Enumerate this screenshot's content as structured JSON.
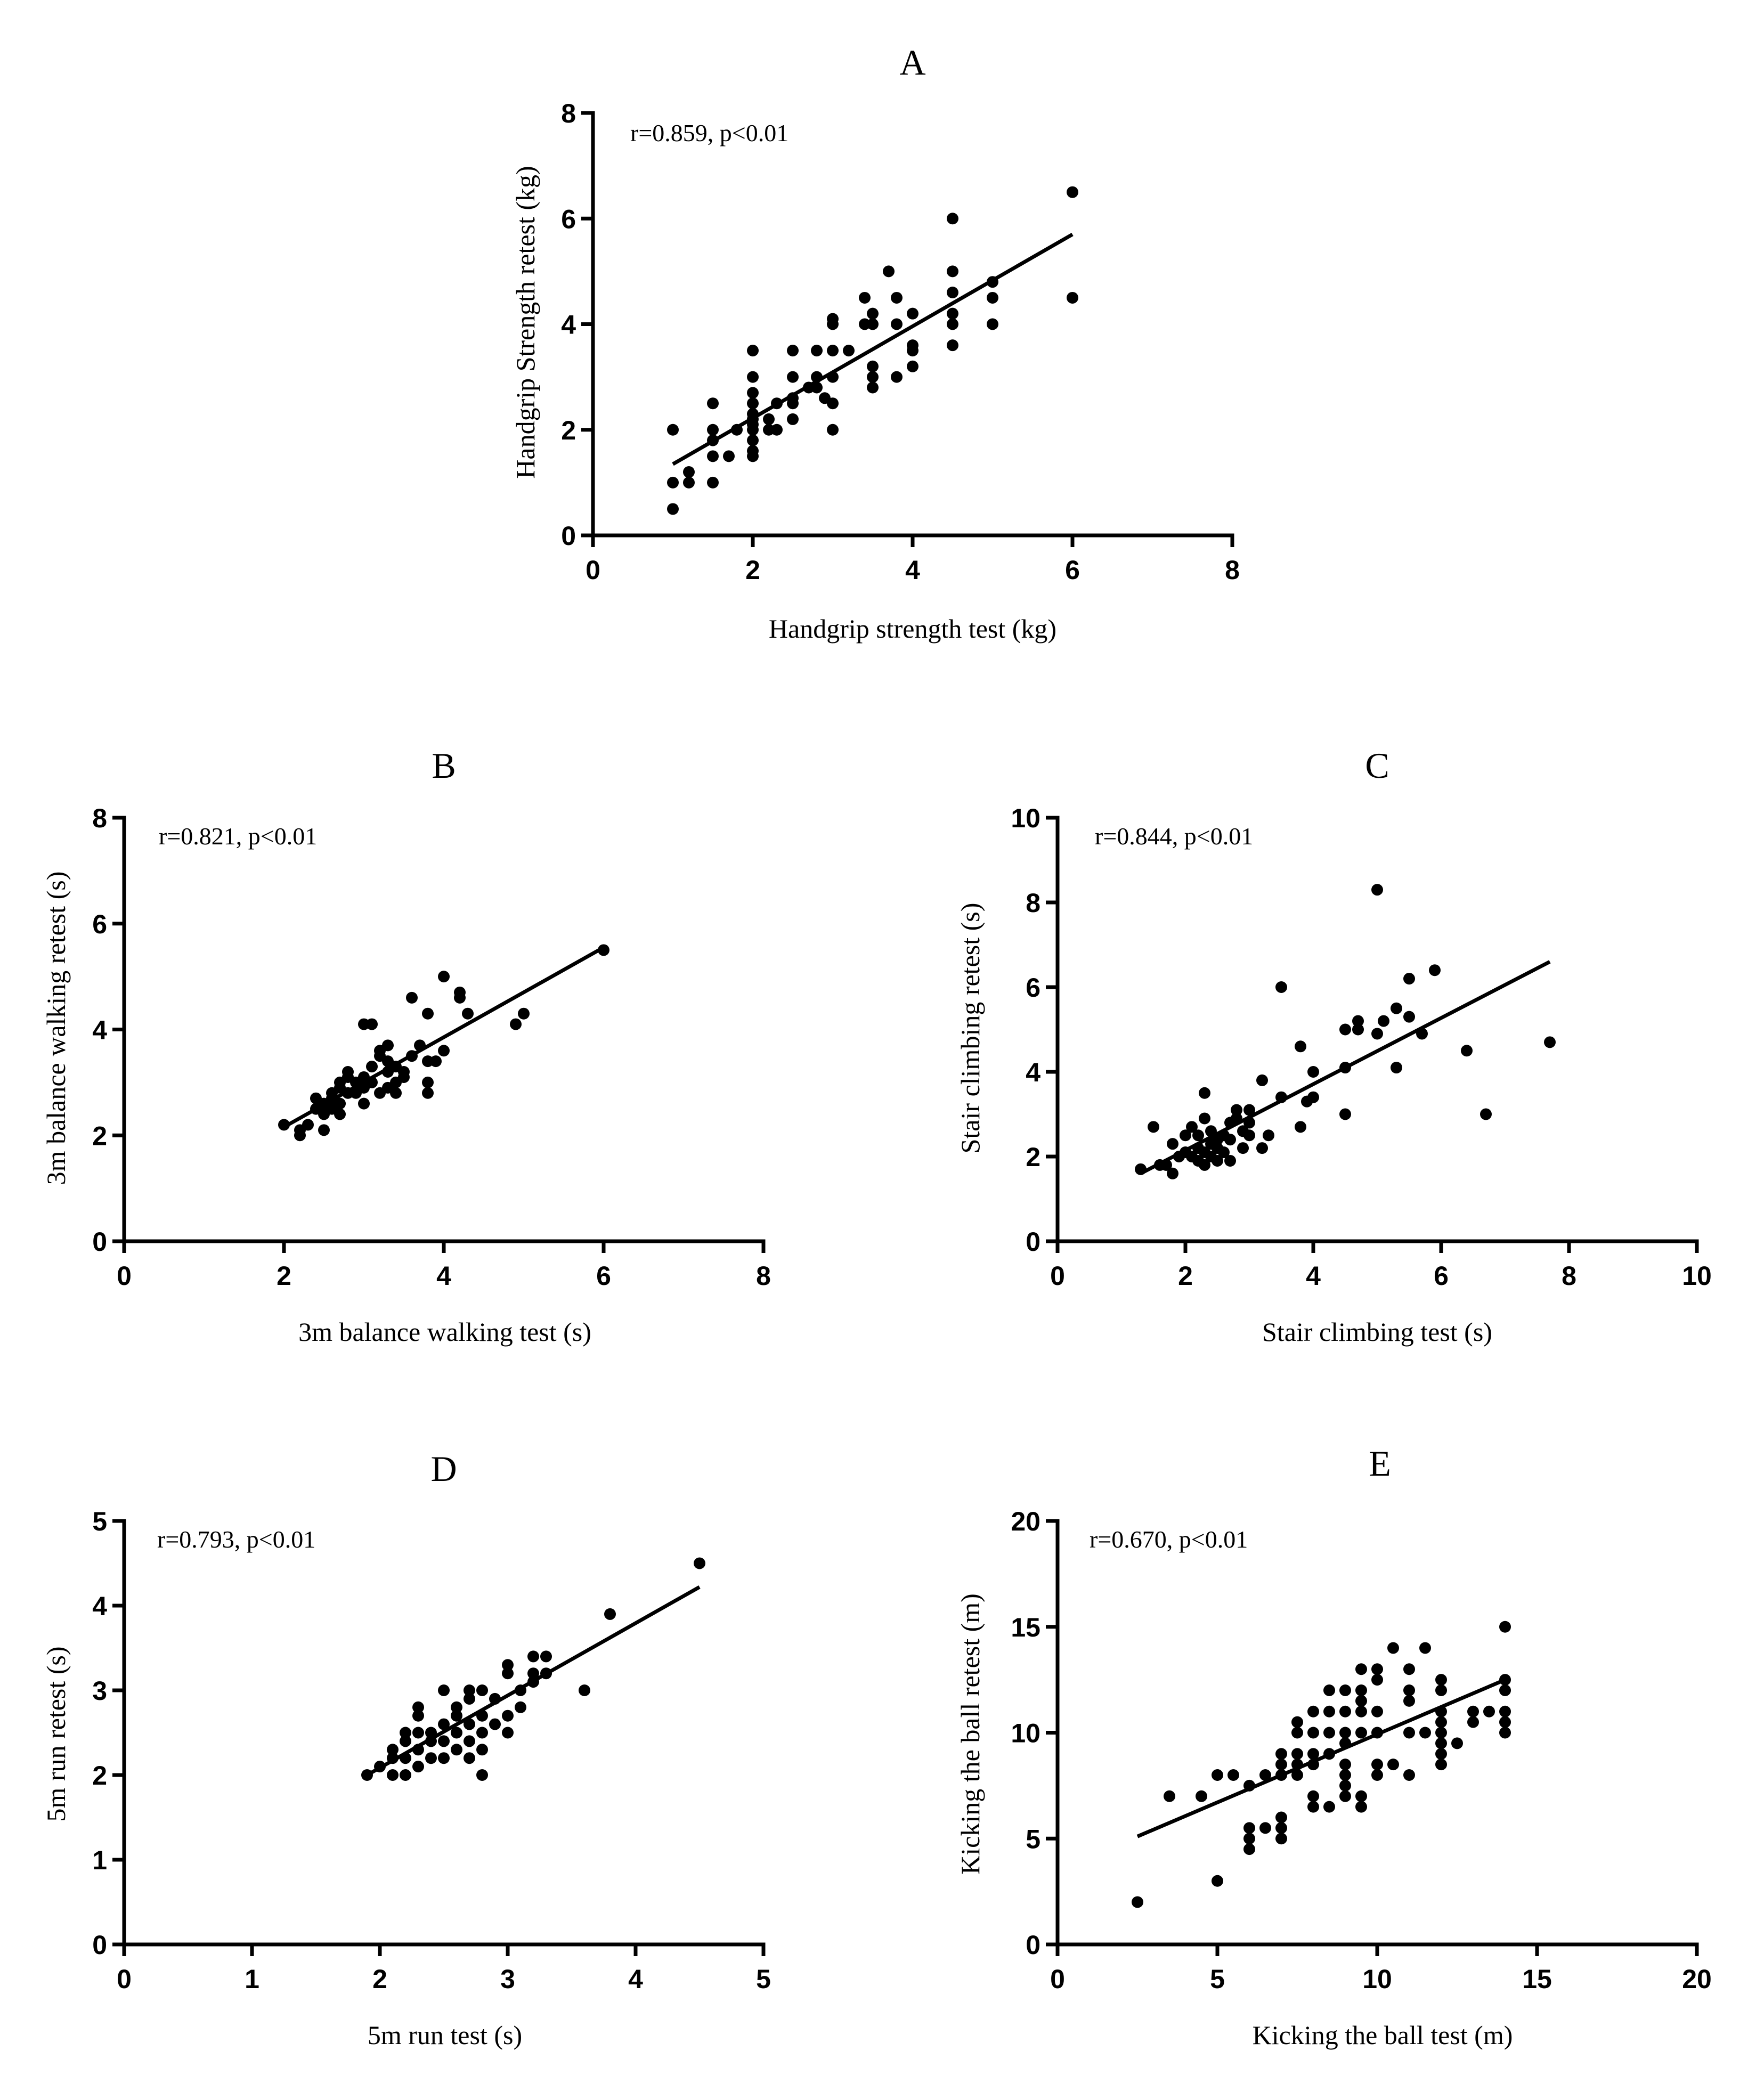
{
  "chart_data": [
    {
      "panel": "A",
      "type": "scatter",
      "xlabel": "Handgrip strength test (kg)",
      "ylabel": "Handgrip Strength retest (kg)",
      "annotation": "r=0.859, p<0.01",
      "xlim": [
        0,
        8
      ],
      "ylim": [
        0,
        8
      ],
      "xticks": [
        0,
        2,
        4,
        6,
        8
      ],
      "yticks": [
        0,
        2,
        4,
        6,
        8
      ],
      "fit": [
        [
          1,
          1.35
        ],
        [
          6,
          5.7
        ]
      ],
      "points": [
        [
          1,
          0.5
        ],
        [
          1,
          1
        ],
        [
          1,
          2
        ],
        [
          1.2,
          1
        ],
        [
          1.2,
          1.2
        ],
        [
          1.5,
          1
        ],
        [
          1.5,
          1.5
        ],
        [
          1.5,
          1.8
        ],
        [
          1.5,
          2
        ],
        [
          1.5,
          2.5
        ],
        [
          1.7,
          1.5
        ],
        [
          1.8,
          2
        ],
        [
          2,
          1.5
        ],
        [
          2,
          1.6
        ],
        [
          2,
          1.8
        ],
        [
          2,
          2
        ],
        [
          2,
          2.1
        ],
        [
          2,
          2.2
        ],
        [
          2,
          2.3
        ],
        [
          2,
          2.5
        ],
        [
          2,
          2.7
        ],
        [
          2,
          3
        ],
        [
          2,
          3.5
        ],
        [
          2.2,
          2
        ],
        [
          2.2,
          2.2
        ],
        [
          2.3,
          2.5
        ],
        [
          2.3,
          2
        ],
        [
          2.5,
          2.2
        ],
        [
          2.5,
          2.5
        ],
        [
          2.5,
          2.6
        ],
        [
          2.5,
          3
        ],
        [
          2.5,
          3.5
        ],
        [
          2.7,
          2.8
        ],
        [
          2.8,
          2.8
        ],
        [
          2.8,
          3
        ],
        [
          2.8,
          3.5
        ],
        [
          2.9,
          2.6
        ],
        [
          3,
          2
        ],
        [
          3,
          2.5
        ],
        [
          3,
          3
        ],
        [
          3,
          3.5
        ],
        [
          3,
          4
        ],
        [
          3,
          4.1
        ],
        [
          3.2,
          3.5
        ],
        [
          3.4,
          4
        ],
        [
          3.4,
          4.5
        ],
        [
          3.5,
          2.8
        ],
        [
          3.5,
          3
        ],
        [
          3.5,
          3.2
        ],
        [
          3.5,
          4
        ],
        [
          3.5,
          4.2
        ],
        [
          3.7,
          5
        ],
        [
          3.8,
          3
        ],
        [
          3.8,
          4
        ],
        [
          3.8,
          4.5
        ],
        [
          4,
          3.2
        ],
        [
          4,
          3.5
        ],
        [
          4,
          3.6
        ],
        [
          4,
          4.2
        ],
        [
          4.5,
          3.6
        ],
        [
          4.5,
          4
        ],
        [
          4.5,
          4.2
        ],
        [
          4.5,
          4.6
        ],
        [
          4.5,
          5
        ],
        [
          4.5,
          6
        ],
        [
          5,
          4
        ],
        [
          5,
          4.5
        ],
        [
          5,
          4.8
        ],
        [
          6,
          4.5
        ],
        [
          6,
          6.5
        ]
      ]
    },
    {
      "panel": "B",
      "type": "scatter",
      "xlabel": "3m balance walking test (s)",
      "ylabel": "3m balance walking retest (s)",
      "annotation": "r=0.821, p<0.01",
      "xlim": [
        0,
        8
      ],
      "ylim": [
        0,
        8
      ],
      "xticks": [
        0,
        2,
        4,
        6,
        8
      ],
      "yticks": [
        0,
        2,
        4,
        6,
        8
      ],
      "fit": [
        [
          2.05,
          2.2
        ],
        [
          6,
          5.55
        ]
      ],
      "points": [
        [
          2,
          2.2
        ],
        [
          2.2,
          2
        ],
        [
          2.2,
          2.1
        ],
        [
          2.3,
          2.2
        ],
        [
          2.4,
          2.5
        ],
        [
          2.4,
          2.7
        ],
        [
          2.5,
          2.1
        ],
        [
          2.5,
          2.4
        ],
        [
          2.5,
          2.6
        ],
        [
          2.6,
          2.5
        ],
        [
          2.6,
          2.7
        ],
        [
          2.6,
          2.8
        ],
        [
          2.7,
          2.4
        ],
        [
          2.7,
          2.6
        ],
        [
          2.7,
          2.9
        ],
        [
          2.7,
          3
        ],
        [
          2.8,
          2.8
        ],
        [
          2.8,
          3.1
        ],
        [
          2.8,
          3.2
        ],
        [
          2.9,
          2.8
        ],
        [
          2.9,
          3
        ],
        [
          3,
          2.6
        ],
        [
          3,
          2.9
        ],
        [
          3,
          3.1
        ],
        [
          3,
          4.1
        ],
        [
          3.1,
          3
        ],
        [
          3.1,
          3.3
        ],
        [
          3.1,
          4.1
        ],
        [
          3.2,
          2.8
        ],
        [
          3.2,
          3.5
        ],
        [
          3.2,
          3.6
        ],
        [
          3.3,
          2.9
        ],
        [
          3.3,
          3.2
        ],
        [
          3.3,
          3.4
        ],
        [
          3.3,
          3.7
        ],
        [
          3.4,
          2.8
        ],
        [
          3.4,
          3
        ],
        [
          3.4,
          3.3
        ],
        [
          3.5,
          3.2
        ],
        [
          3.5,
          3.1
        ],
        [
          3.6,
          3.5
        ],
        [
          3.6,
          4.6
        ],
        [
          3.7,
          3.7
        ],
        [
          3.8,
          2.8
        ],
        [
          3.8,
          3
        ],
        [
          3.8,
          3.4
        ],
        [
          3.8,
          4.3
        ],
        [
          3.9,
          3.4
        ],
        [
          4,
          3.6
        ],
        [
          4,
          5
        ],
        [
          4.2,
          4.6
        ],
        [
          4.2,
          4.7
        ],
        [
          4.3,
          4.3
        ],
        [
          4.9,
          4.1
        ],
        [
          5,
          4.3
        ],
        [
          6,
          5.5
        ]
      ]
    },
    {
      "panel": "C",
      "type": "scatter",
      "xlabel": "Stair climbing test (s)",
      "ylabel": "Stair climbing retest (s)",
      "annotation": "r=0.844, p<0.01",
      "xlim": [
        0,
        10
      ],
      "ylim": [
        0,
        10
      ],
      "xticks": [
        0,
        2,
        4,
        6,
        8,
        10
      ],
      "yticks": [
        0,
        2,
        4,
        6,
        8,
        10
      ],
      "fit": [
        [
          1.3,
          1.6
        ],
        [
          7.7,
          6.6
        ]
      ],
      "points": [
        [
          1.3,
          1.7
        ],
        [
          1.5,
          2.7
        ],
        [
          1.6,
          1.8
        ],
        [
          1.7,
          1.8
        ],
        [
          1.8,
          1.6
        ],
        [
          1.8,
          2.3
        ],
        [
          1.9,
          2
        ],
        [
          2,
          2.1
        ],
        [
          2,
          2.5
        ],
        [
          2.1,
          2
        ],
        [
          2.1,
          2.7
        ],
        [
          2.2,
          1.9
        ],
        [
          2.2,
          2.2
        ],
        [
          2.2,
          2.5
        ],
        [
          2.3,
          2.9
        ],
        [
          2.3,
          1.8
        ],
        [
          2.3,
          2.1
        ],
        [
          2.3,
          3.5
        ],
        [
          2.4,
          2
        ],
        [
          2.4,
          2.3
        ],
        [
          2.4,
          2.6
        ],
        [
          2.5,
          1.9
        ],
        [
          2.5,
          2.2
        ],
        [
          2.5,
          2.4
        ],
        [
          2.6,
          2.5
        ],
        [
          2.6,
          2.1
        ],
        [
          2.7,
          2.8
        ],
        [
          2.7,
          1.9
        ],
        [
          2.7,
          2.4
        ],
        [
          2.8,
          2.9
        ],
        [
          2.8,
          3.1
        ],
        [
          2.9,
          2.6
        ],
        [
          2.9,
          2.2
        ],
        [
          3,
          2.5
        ],
        [
          3,
          2.8
        ],
        [
          3,
          3.1
        ],
        [
          3.2,
          2.2
        ],
        [
          3.2,
          3.8
        ],
        [
          3.3,
          2.5
        ],
        [
          3.5,
          3.4
        ],
        [
          3.5,
          6
        ],
        [
          3.8,
          2.7
        ],
        [
          3.8,
          4.6
        ],
        [
          3.9,
          3.3
        ],
        [
          4,
          4
        ],
        [
          4,
          3.4
        ],
        [
          4.5,
          3
        ],
        [
          4.5,
          4.1
        ],
        [
          4.5,
          5
        ],
        [
          4.7,
          5
        ],
        [
          4.7,
          5.2
        ],
        [
          5,
          4.9
        ],
        [
          5,
          8.3
        ],
        [
          5.1,
          5.2
        ],
        [
          5.3,
          4.1
        ],
        [
          5.3,
          5.5
        ],
        [
          5.5,
          6.2
        ],
        [
          5.5,
          5.3
        ],
        [
          5.7,
          4.9
        ],
        [
          5.9,
          6.4
        ],
        [
          6.4,
          4.5
        ],
        [
          6.7,
          3
        ],
        [
          7.7,
          4.7
        ]
      ]
    },
    {
      "panel": "D",
      "type": "scatter",
      "xlabel": "5m run test (s)",
      "ylabel": "5m run retest (s)",
      "annotation": "r=0.793, p<0.01",
      "xlim": [
        0,
        5
      ],
      "ylim": [
        0,
        5
      ],
      "xticks": [
        0,
        1,
        2,
        3,
        4,
        5
      ],
      "yticks": [
        0,
        1,
        2,
        3,
        4,
        5
      ],
      "fit": [
        [
          1.9,
          2.0
        ],
        [
          4.5,
          4.22
        ]
      ],
      "points": [
        [
          1.9,
          2
        ],
        [
          2,
          2.1
        ],
        [
          2.1,
          2
        ],
        [
          2.1,
          2.2
        ],
        [
          2.1,
          2.3
        ],
        [
          2.2,
          2
        ],
        [
          2.2,
          2.2
        ],
        [
          2.2,
          2.4
        ],
        [
          2.2,
          2.5
        ],
        [
          2.3,
          2.1
        ],
        [
          2.3,
          2.3
        ],
        [
          2.3,
          2.5
        ],
        [
          2.3,
          2.7
        ],
        [
          2.3,
          2.8
        ],
        [
          2.4,
          2.2
        ],
        [
          2.4,
          2.4
        ],
        [
          2.4,
          2.5
        ],
        [
          2.5,
          2.2
        ],
        [
          2.5,
          2.4
        ],
        [
          2.5,
          2.6
        ],
        [
          2.5,
          3
        ],
        [
          2.6,
          2.3
        ],
        [
          2.6,
          2.5
        ],
        [
          2.6,
          2.7
        ],
        [
          2.6,
          2.8
        ],
        [
          2.7,
          2.2
        ],
        [
          2.7,
          2.4
        ],
        [
          2.7,
          2.6
        ],
        [
          2.7,
          2.9
        ],
        [
          2.7,
          3
        ],
        [
          2.8,
          2
        ],
        [
          2.8,
          2.3
        ],
        [
          2.8,
          2.5
        ],
        [
          2.8,
          2.7
        ],
        [
          2.8,
          3
        ],
        [
          2.9,
          2.6
        ],
        [
          2.9,
          2.9
        ],
        [
          3,
          2.5
        ],
        [
          3,
          2.7
        ],
        [
          3,
          3.2
        ],
        [
          3,
          3.3
        ],
        [
          3.1,
          2.8
        ],
        [
          3.1,
          3
        ],
        [
          3.2,
          3.1
        ],
        [
          3.2,
          3.2
        ],
        [
          3.2,
          3.4
        ],
        [
          3.3,
          3.2
        ],
        [
          3.3,
          3.4
        ],
        [
          3.6,
          3
        ],
        [
          3.8,
          3.9
        ],
        [
          4.5,
          4.5
        ]
      ]
    },
    {
      "panel": "E",
      "type": "scatter",
      "xlabel": "Kicking the ball test (m)",
      "ylabel": "Kicking the ball retest (m)",
      "annotation": "r=0.670, p<0.01",
      "xlim": [
        0,
        20
      ],
      "ylim": [
        0,
        20
      ],
      "xticks": [
        0,
        5,
        10,
        15,
        20
      ],
      "yticks": [
        0,
        5,
        10,
        15,
        20
      ],
      "fit": [
        [
          2.5,
          5.1
        ],
        [
          14,
          12.5
        ]
      ],
      "points": [
        [
          2.5,
          2
        ],
        [
          3.5,
          7
        ],
        [
          4.5,
          7
        ],
        [
          5,
          3
        ],
        [
          5,
          8
        ],
        [
          5.5,
          8
        ],
        [
          6,
          4.5
        ],
        [
          6,
          5
        ],
        [
          6,
          5.5
        ],
        [
          6,
          7.5
        ],
        [
          6.5,
          5.5
        ],
        [
          6.5,
          8
        ],
        [
          7,
          5
        ],
        [
          7,
          5.5
        ],
        [
          7,
          6
        ],
        [
          7,
          8
        ],
        [
          7,
          8.5
        ],
        [
          7,
          9
        ],
        [
          7.5,
          8
        ],
        [
          7.5,
          8.5
        ],
        [
          7.5,
          9
        ],
        [
          7.5,
          10
        ],
        [
          7.5,
          10.5
        ],
        [
          8,
          6.5
        ],
        [
          8,
          7
        ],
        [
          8,
          8.5
        ],
        [
          8,
          9
        ],
        [
          8,
          10
        ],
        [
          8,
          11
        ],
        [
          8.5,
          6.5
        ],
        [
          8.5,
          9
        ],
        [
          8.5,
          10
        ],
        [
          8.5,
          11
        ],
        [
          8.5,
          12
        ],
        [
          9,
          7
        ],
        [
          9,
          7.5
        ],
        [
          9,
          8
        ],
        [
          9,
          8.5
        ],
        [
          9,
          9.5
        ],
        [
          9,
          10
        ],
        [
          9,
          11
        ],
        [
          9,
          12
        ],
        [
          9.5,
          6.5
        ],
        [
          9.5,
          7
        ],
        [
          9.5,
          10
        ],
        [
          9.5,
          11
        ],
        [
          9.5,
          11.5
        ],
        [
          9.5,
          12
        ],
        [
          9.5,
          13
        ],
        [
          10,
          8
        ],
        [
          10,
          8.5
        ],
        [
          10,
          10
        ],
        [
          10,
          11
        ],
        [
          10,
          12.5
        ],
        [
          10,
          13
        ],
        [
          10.5,
          8.5
        ],
        [
          10.5,
          14
        ],
        [
          11,
          8
        ],
        [
          11,
          10
        ],
        [
          11,
          11.5
        ],
        [
          11,
          12
        ],
        [
          11,
          13
        ],
        [
          11.5,
          10
        ],
        [
          11.5,
          14
        ],
        [
          12,
          8.5
        ],
        [
          12,
          9
        ],
        [
          12,
          9.5
        ],
        [
          12,
          10
        ],
        [
          12,
          10.5
        ],
        [
          12,
          11
        ],
        [
          12,
          12
        ],
        [
          12,
          12.5
        ],
        [
          12.5,
          9.5
        ],
        [
          13,
          10.5
        ],
        [
          13,
          11
        ],
        [
          13.5,
          11
        ],
        [
          14,
          10
        ],
        [
          14,
          10.5
        ],
        [
          14,
          11
        ],
        [
          14,
          12
        ],
        [
          14,
          12.5
        ],
        [
          14,
          15
        ]
      ]
    }
  ]
}
